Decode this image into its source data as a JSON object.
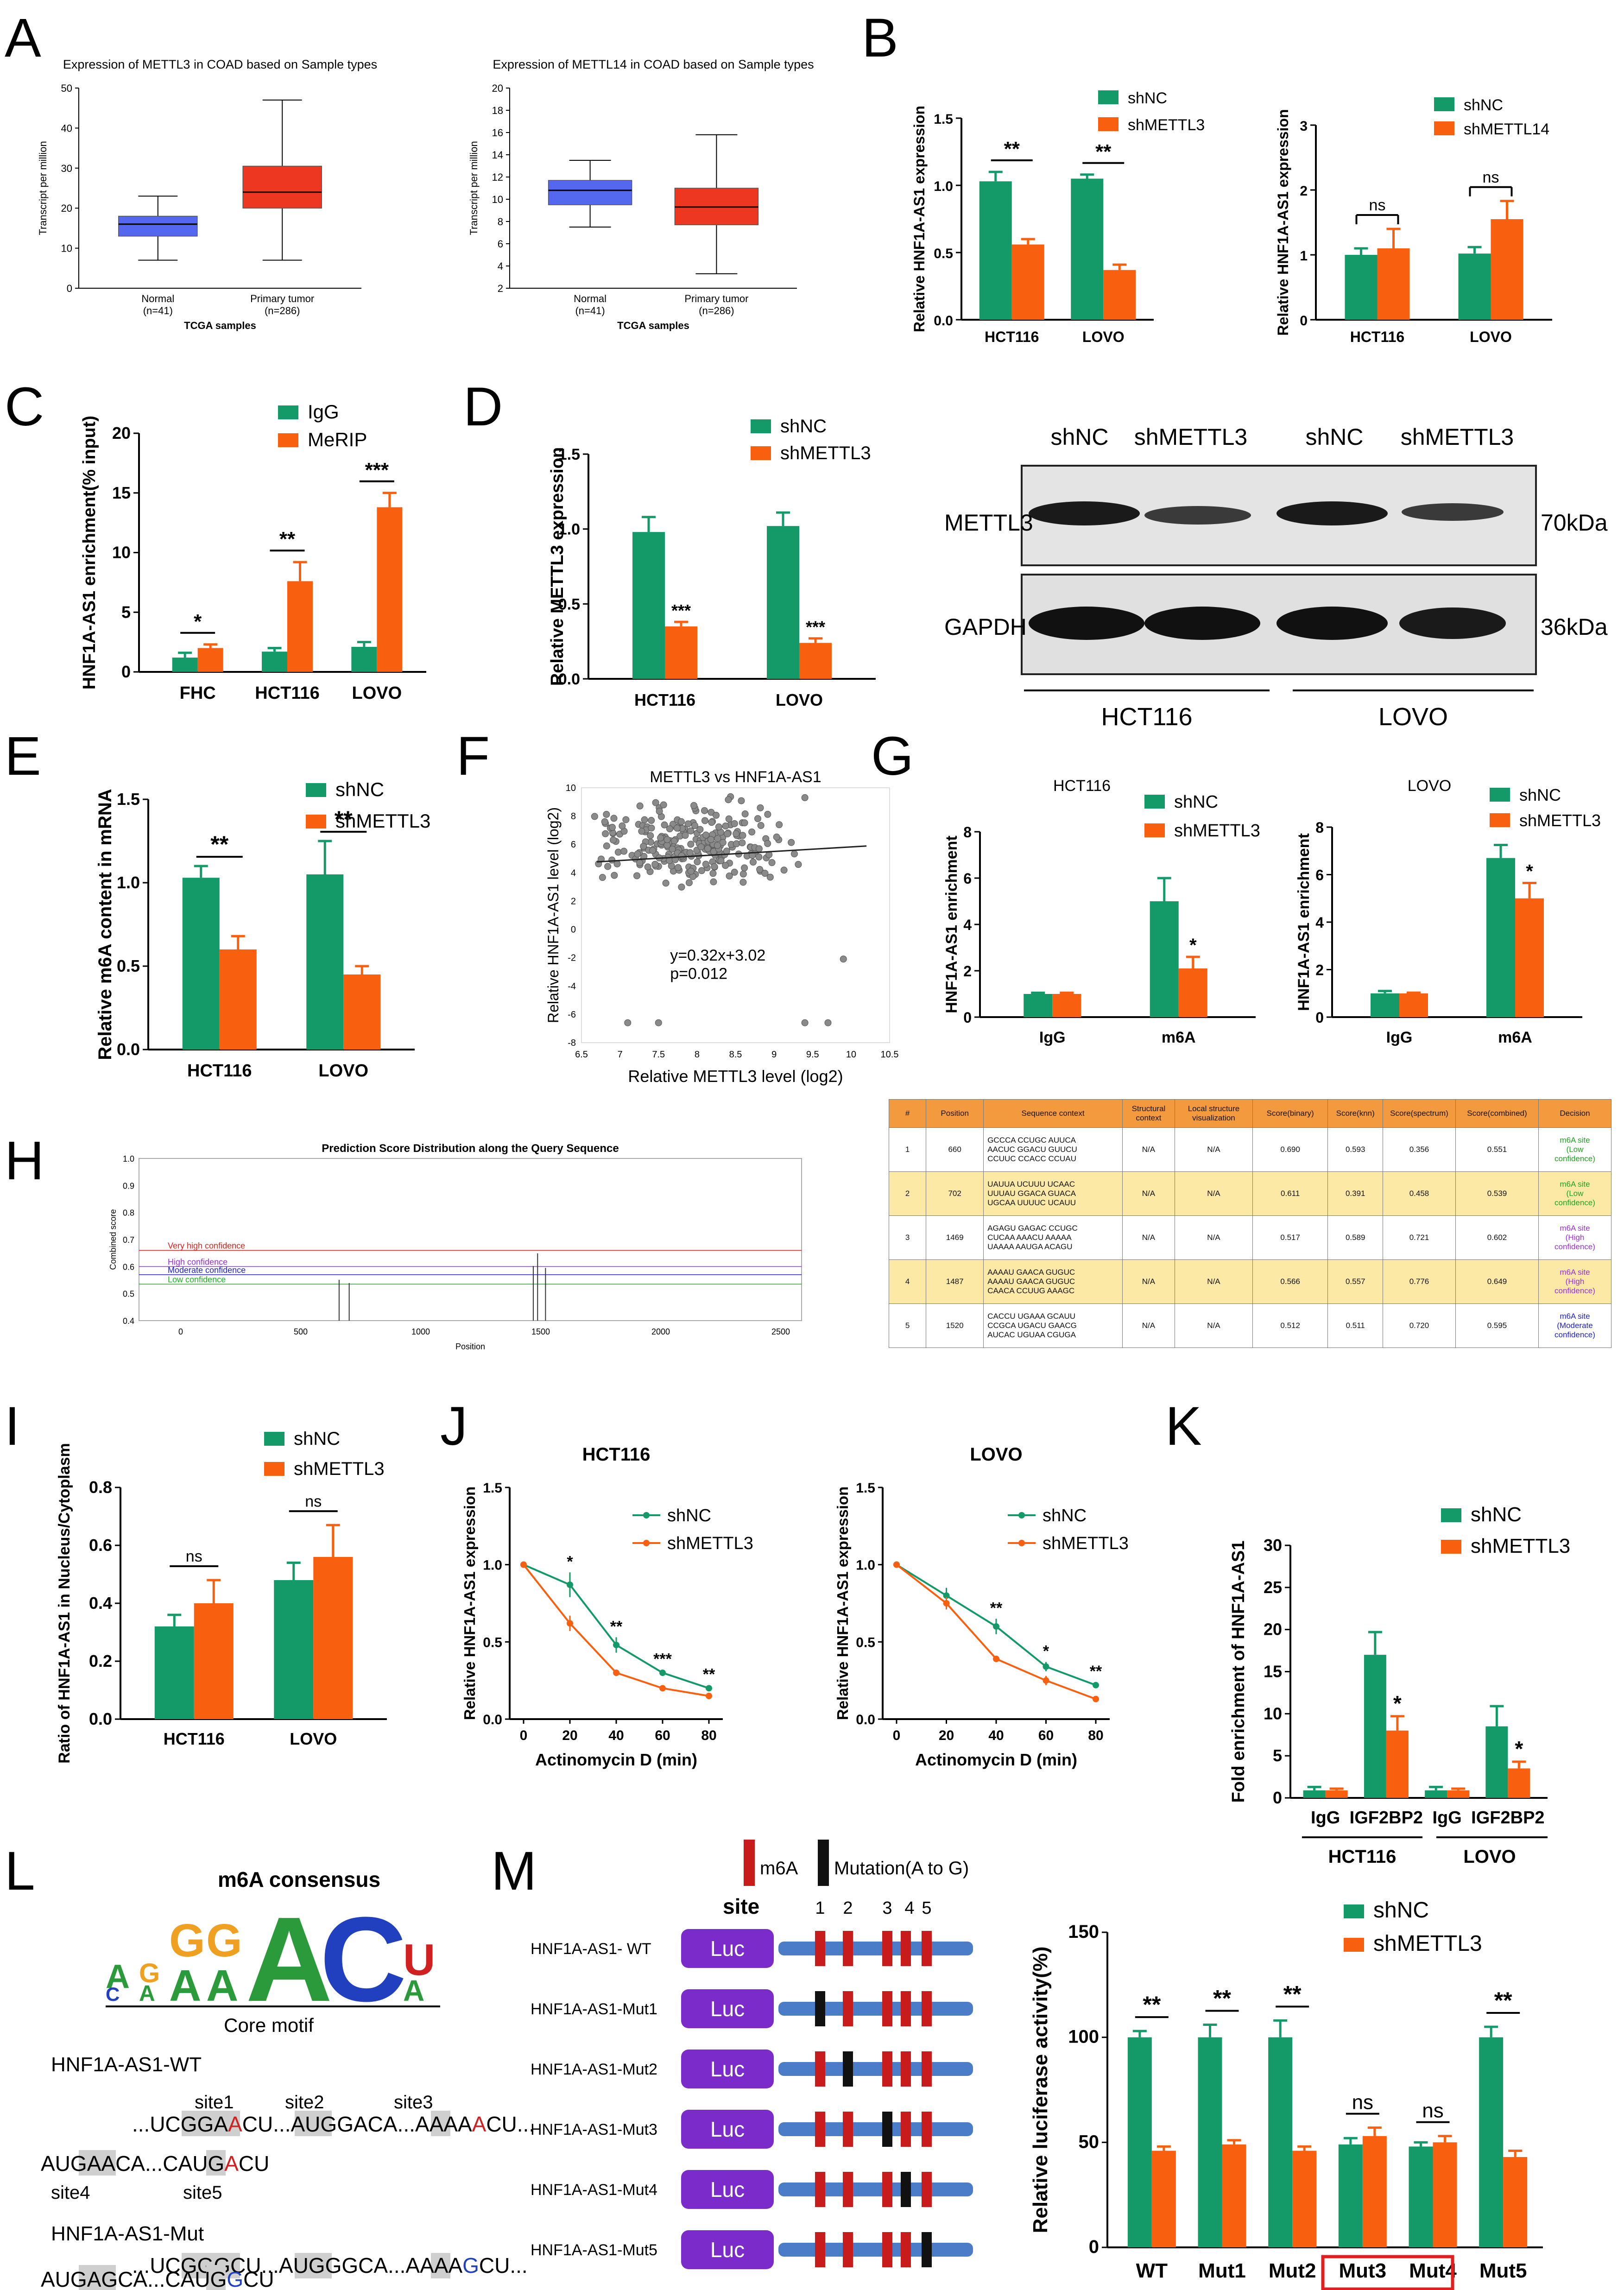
{
  "panel_labels": [
    "A",
    "B",
    "C",
    "D",
    "E",
    "F",
    "G",
    "H",
    "I",
    "J",
    "K",
    "L",
    "M"
  ],
  "colors": {
    "green": "#149a68",
    "orange": "#f86010",
    "blue_box": "#5467ef",
    "red_box": "#ee3720",
    "table_orange": "#f39a3e",
    "table_yellow": "#fde9a6"
  },
  "chart_data": [
    {
      "id": "A1",
      "type": "box",
      "title": "Expression of METTL3 in COAD based on Sample types",
      "xlabel": "TCGA samples",
      "ylabel": "Transcript per million",
      "ylim": [
        0,
        50
      ],
      "yticks": [
        0,
        10,
        20,
        30,
        40,
        50
      ],
      "categories": [
        "Normal",
        "Primary tumor"
      ],
      "category_n": [
        "(n=41)",
        "(n=286)"
      ],
      "boxes": [
        {
          "min": 7,
          "q1": 13,
          "median": 16,
          "q3": 18,
          "max": 23,
          "color": "#5467ef"
        },
        {
          "min": 7,
          "q1": 20,
          "median": 24,
          "q3": 30.5,
          "max": 47,
          "color": "#ee3720"
        }
      ]
    },
    {
      "id": "A2",
      "type": "box",
      "title": "Expression of METTL14 in COAD based on Sample types",
      "xlabel": "TCGA samples",
      "ylabel": "Transcript per million",
      "ylim": [
        2,
        20
      ],
      "yticks": [
        2,
        4,
        6,
        8,
        10,
        12,
        14,
        16,
        18,
        20
      ],
      "categories": [
        "Normal",
        "Primary tumor"
      ],
      "category_n": [
        "(n=41)",
        "(n=286)"
      ],
      "boxes": [
        {
          "min": 7.5,
          "q1": 9.5,
          "median": 10.8,
          "q3": 11.7,
          "max": 13.5,
          "color": "#5467ef"
        },
        {
          "min": 3.3,
          "q1": 7.7,
          "median": 9.3,
          "q3": 11,
          "max": 15.8,
          "color": "#ee3720"
        }
      ]
    },
    {
      "id": "B1",
      "type": "bar",
      "ylabel": "Relative HNF1A-AS1 expression",
      "ylim": [
        0,
        1.5
      ],
      "yticks": [
        "0.0",
        "0.5",
        "1.0",
        "1.5"
      ],
      "categories": [
        "HCT116",
        "LOVO"
      ],
      "series": [
        {
          "name": "shNC",
          "values": [
            1.03,
            1.05
          ],
          "err": [
            0.07,
            0.03
          ]
        },
        {
          "name": "shMETTL3",
          "values": [
            0.56,
            0.37
          ],
          "err": [
            0.04,
            0.04
          ]
        }
      ],
      "significance": [
        "**",
        "**"
      ]
    },
    {
      "id": "B2",
      "type": "bar",
      "ylabel": "Relative HNF1A-AS1 expression",
      "ylim": [
        0,
        3
      ],
      "yticks": [
        "0",
        "1",
        "2",
        "3"
      ],
      "categories": [
        "HCT116",
        "LOVO"
      ],
      "series": [
        {
          "name": "shNC",
          "values": [
            1.0,
            1.02
          ],
          "err": [
            0.1,
            0.1
          ]
        },
        {
          "name": "shMETTL14",
          "values": [
            1.1,
            1.55
          ],
          "err": [
            0.3,
            0.28
          ]
        }
      ],
      "significance": [
        "ns",
        "ns"
      ]
    },
    {
      "id": "C",
      "type": "bar",
      "ylabel": "HNF1A-AS1 enrichment(% input)",
      "ylim": [
        0,
        20
      ],
      "yticks": [
        "0",
        "5",
        "10",
        "15",
        "20"
      ],
      "categories": [
        "FHC",
        "HCT116",
        "LOVO"
      ],
      "series": [
        {
          "name": "IgG",
          "values": [
            1.2,
            1.7,
            2.1
          ],
          "err": [
            0.4,
            0.3,
            0.4
          ]
        },
        {
          "name": "MeRIP",
          "values": [
            2.0,
            7.6,
            13.8
          ],
          "err": [
            0.3,
            1.6,
            1.2
          ]
        }
      ],
      "significance": [
        "*",
        "**",
        "***"
      ]
    },
    {
      "id": "D",
      "type": "bar",
      "ylabel": "Relative METTL3 expression",
      "ylim": [
        0,
        1.5
      ],
      "yticks": [
        "0.0",
        "0.5",
        "1.0",
        "1.5"
      ],
      "categories": [
        "HCT116",
        "LOVO"
      ],
      "series": [
        {
          "name": "shNC",
          "values": [
            0.98,
            1.02
          ],
          "err": [
            0.1,
            0.09
          ]
        },
        {
          "name": "shMETTL3",
          "values": [
            0.35,
            0.24
          ],
          "err": [
            0.03,
            0.03
          ]
        }
      ],
      "significance": [
        "***",
        "***"
      ]
    },
    {
      "id": "E",
      "type": "bar",
      "ylabel": "Relative m6A content in mRNA",
      "ylim": [
        0,
        1.5
      ],
      "yticks": [
        "0.0",
        "0.5",
        "1.0",
        "1.5"
      ],
      "categories": [
        "HCT116",
        "LOVO"
      ],
      "series": [
        {
          "name": "shNC",
          "values": [
            1.03,
            1.05
          ],
          "err": [
            0.07,
            0.2
          ]
        },
        {
          "name": "shMETTL3",
          "values": [
            0.6,
            0.45
          ],
          "err": [
            0.08,
            0.05
          ]
        }
      ],
      "significance": [
        "**",
        "**"
      ]
    },
    {
      "id": "F",
      "type": "scatter",
      "title": "METTL3 vs HNF1A-AS1",
      "xlabel": "Relative METTL3 level (log2)",
      "ylabel": "Relative  HNF1A-AS1 level (log2)",
      "xlim": [
        6.5,
        10.5
      ],
      "ylim": [
        -8,
        10
      ],
      "xticks": [
        "6.5",
        "7",
        "7.5",
        "8",
        "8.5",
        "9",
        "9.5",
        "10",
        "10.5"
      ],
      "yticks": [
        "-8",
        "-6",
        "-4",
        "-2",
        "0",
        "2",
        "4",
        "6",
        "8",
        "10"
      ],
      "fit": {
        "slope": 0.32,
        "intercept": 3.02
      },
      "annotation": [
        "y=0.32x+3.02",
        "p=0.012"
      ],
      "outliers": [
        [
          6.9,
          7.2
        ],
        [
          7.1,
          -6.6
        ],
        [
          7.5,
          -6.6
        ],
        [
          9.4,
          -6.6
        ],
        [
          9.7,
          -6.6
        ],
        [
          9.4,
          9.3
        ],
        [
          9.9,
          -2.1
        ],
        [
          7.8,
          5.2
        ]
      ]
    },
    {
      "id": "G1",
      "type": "bar",
      "title": "HCT116",
      "ylabel": "HNF1A-AS1 enrichment",
      "ylim": [
        0,
        8
      ],
      "yticks": [
        "0",
        "2",
        "4",
        "6",
        "8"
      ],
      "categories": [
        "IgG",
        "m6A"
      ],
      "series": [
        {
          "name": "shNC",
          "values": [
            1.0,
            5.0
          ],
          "err": [
            0.05,
            1.0
          ]
        },
        {
          "name": "shMETTL3",
          "values": [
            1.0,
            2.1
          ],
          "err": [
            0.05,
            0.5
          ]
        }
      ],
      "significance": [
        "",
        "*"
      ]
    },
    {
      "id": "G2",
      "type": "bar",
      "title": "LOVO",
      "ylabel": "HNF1A-AS1 enrichment",
      "ylim": [
        0,
        8
      ],
      "yticks": [
        "0",
        "2",
        "4",
        "6",
        "8"
      ],
      "categories": [
        "IgG",
        "m6A"
      ],
      "series": [
        {
          "name": "shNC",
          "values": [
            1.0,
            6.7
          ],
          "err": [
            0.1,
            0.55
          ]
        },
        {
          "name": "shMETTL3",
          "values": [
            1.0,
            5.0
          ],
          "err": [
            0.03,
            0.65
          ]
        }
      ],
      "significance": [
        "",
        "*"
      ]
    },
    {
      "id": "H",
      "type": "line",
      "title": "Prediction Score Distribution along the Query Sequence",
      "xlabel": "Position",
      "ylabel": "Combined score",
      "xlim": [
        0,
        2500
      ],
      "ylim": [
        0.4,
        1.0
      ],
      "xticks": [
        "0",
        "500",
        "1000",
        "1500",
        "2000",
        "2500"
      ],
      "yticks": [
        "0.4",
        "0.5",
        "0.6",
        "0.7",
        "0.8",
        "0.9",
        "1.0"
      ],
      "thresholds": [
        {
          "label": "Very high confidence",
          "value": 0.66,
          "color": "#e02020"
        },
        {
          "label": "High confidence",
          "value": 0.6,
          "color": "#9a30d0"
        },
        {
          "label": "Moderate confidence",
          "value": 0.57,
          "color": "#2020d0"
        },
        {
          "label": "Low confidence",
          "value": 0.535,
          "color": "#20b020"
        }
      ],
      "sites": [
        [
          660,
          0.551
        ],
        [
          702,
          0.539
        ],
        [
          1469,
          0.602
        ],
        [
          1487,
          0.649
        ],
        [
          1520,
          0.595
        ]
      ]
    },
    {
      "id": "I",
      "type": "bar",
      "ylabel": "Ratio of HNF1A-AS1 in Nucleus/Cytoplasm",
      "ylim": [
        0,
        0.8
      ],
      "yticks": [
        "0.0",
        "0.2",
        "0.4",
        "0.6",
        "0.8"
      ],
      "categories": [
        "HCT116",
        "LOVO"
      ],
      "series": [
        {
          "name": "shNC",
          "values": [
            0.32,
            0.48
          ],
          "err": [
            0.04,
            0.06
          ]
        },
        {
          "name": "shMETTL3",
          "values": [
            0.4,
            0.56
          ],
          "err": [
            0.08,
            0.11
          ]
        }
      ],
      "significance": [
        "ns",
        "ns"
      ]
    },
    {
      "id": "J1",
      "type": "line",
      "title": "HCT116",
      "xlabel": "Actinomycin D (min)",
      "ylabel": "Relative HNF1A-AS1 expression",
      "x": [
        0,
        20,
        40,
        60,
        80
      ],
      "ylim": [
        0,
        1.5
      ],
      "yticks": [
        "0.0",
        "0.5",
        "1.0",
        "1.5"
      ],
      "series": [
        {
          "name": "shNC",
          "values": [
            1.0,
            0.87,
            0.48,
            0.3,
            0.2
          ],
          "err": [
            0,
            0.08,
            0.05,
            0.02,
            0.02
          ]
        },
        {
          "name": "shMETTL3",
          "values": [
            1.0,
            0.62,
            0.3,
            0.2,
            0.15
          ],
          "err": [
            0,
            0.05,
            0.02,
            0.02,
            0.02
          ]
        }
      ],
      "significance": [
        "",
        "*",
        "**",
        "***",
        "**"
      ]
    },
    {
      "id": "J2",
      "type": "line",
      "title": "LOVO",
      "xlabel": "Actinomycin D (min)",
      "ylabel": "Relative HNF1A-AS1 expression",
      "x": [
        0,
        20,
        40,
        60,
        80
      ],
      "ylim": [
        0,
        1.5
      ],
      "yticks": [
        "0.0",
        "0.5",
        "1.0",
        "1.5"
      ],
      "series": [
        {
          "name": "shNC",
          "values": [
            1.0,
            0.8,
            0.6,
            0.34,
            0.22
          ],
          "err": [
            0,
            0.05,
            0.05,
            0.03,
            0.02
          ]
        },
        {
          "name": "shMETTL3",
          "values": [
            1.0,
            0.75,
            0.39,
            0.25,
            0.13
          ],
          "err": [
            0,
            0.04,
            0.02,
            0.03,
            0.01
          ]
        }
      ],
      "significance": [
        "",
        "",
        "**",
        "*",
        "**"
      ]
    },
    {
      "id": "K",
      "type": "bar",
      "ylabel": "Fold enrichment of HNF1A-AS1",
      "ylim": [
        0,
        30
      ],
      "yticks": [
        "0",
        "5",
        "10",
        "15",
        "20",
        "25",
        "30"
      ],
      "categories": [
        "IgG",
        "IGF2BP2",
        "IgG",
        "IGF2BP2"
      ],
      "groups": [
        "HCT116",
        "LOVO"
      ],
      "series": [
        {
          "name": "shNC",
          "values": [
            0.9,
            17.0,
            0.9,
            8.5
          ],
          "err": [
            0.4,
            2.7,
            0.4,
            2.4
          ]
        },
        {
          "name": "shMETTL3",
          "values": [
            0.9,
            8.0,
            0.9,
            3.5
          ],
          "err": [
            0.2,
            1.7,
            0.2,
            0.8
          ]
        }
      ],
      "significance": [
        "",
        "*",
        "",
        "*"
      ]
    },
    {
      "id": "M",
      "type": "bar",
      "ylabel": "Relative luciferase activity(%)",
      "ylim": [
        0,
        150
      ],
      "yticks": [
        "0",
        "50",
        "100",
        "150"
      ],
      "categories": [
        "WT",
        "Mut1",
        "Mut2",
        "Mut3",
        "Mut4",
        "Mut5"
      ],
      "series": [
        {
          "name": "shNC",
          "values": [
            100,
            100,
            100,
            49,
            48,
            100
          ],
          "err": [
            3,
            6,
            8,
            3,
            2,
            5
          ]
        },
        {
          "name": "shMETTL3",
          "values": [
            46,
            49,
            46,
            53,
            50,
            43
          ],
          "err": [
            2,
            2,
            2,
            4,
            3,
            3
          ]
        }
      ],
      "significance": [
        "**",
        "**",
        "**",
        "ns",
        "ns",
        "**"
      ],
      "highlight": [
        "Mut3",
        "Mut4"
      ]
    }
  ],
  "blot": {
    "lanes": [
      "shNC",
      "shMETTL3",
      "shNC",
      "shMETTL3"
    ],
    "proteins": [
      "METTL3",
      "GAPDH"
    ],
    "sizes": [
      "70kDa",
      "36kDa"
    ],
    "groups": [
      "HCT116",
      "LOVO"
    ]
  },
  "table_h": {
    "headers": [
      "#",
      "Position",
      "Sequence context",
      "Structural context",
      "Local structure visualization",
      "Score(binary)",
      "Score(knn)",
      "Score(spectrum)",
      "Score(combined)",
      "Decision"
    ],
    "rows": [
      {
        "n": "1",
        "pos": "660",
        "seq": [
          "GCCCA CCUGC AUUCA",
          "AACUC GGACU GUUCU",
          "CCUUC CCACC CCUAU"
        ],
        "struct": "N/A",
        "vis": "N/A",
        "bin": "0.690",
        "knn": "0.593",
        "spec": "0.356",
        "comb": "0.551",
        "decision": [
          "m6A site",
          "(Low",
          "confidence)"
        ],
        "color": "#20a020"
      },
      {
        "n": "2",
        "pos": "702",
        "seq": [
          "UAUUA UCUUU UCAAC",
          "UUUAU GGACA GUACA",
          "UGCAA UUUUC UCAUU"
        ],
        "struct": "N/A",
        "vis": "N/A",
        "bin": "0.611",
        "knn": "0.391",
        "spec": "0.458",
        "comb": "0.539",
        "decision": [
          "m6A site",
          "(Low",
          "confidence)"
        ],
        "color": "#20a020"
      },
      {
        "n": "3",
        "pos": "1469",
        "seq": [
          "AGAGU GAGAC CCUGC",
          "CUCAA AAACU AAAAA",
          "UAAAA AAUGA ACAGU"
        ],
        "struct": "N/A",
        "vis": "N/A",
        "bin": "0.517",
        "knn": "0.589",
        "spec": "0.721",
        "comb": "0.602",
        "decision": [
          "m6A site",
          "(High",
          "confidence)"
        ],
        "color": "#9a30d0"
      },
      {
        "n": "4",
        "pos": "1487",
        "seq": [
          "AAAAU GAACA GUGUC",
          "AAAAU GAACA GUGUC",
          "CAACA CCUUG AAAGC"
        ],
        "struct": "N/A",
        "vis": "N/A",
        "bin": "0.566",
        "knn": "0.557",
        "spec": "0.776",
        "comb": "0.649",
        "decision": [
          "m6A site",
          "(High",
          "confidence)"
        ],
        "color": "#9a30d0"
      },
      {
        "n": "5",
        "pos": "1520",
        "seq": [
          "CACCU UGAAA GCAUU",
          "CCGCA UGACU GAACG",
          "AUCAC UGUAA CGUGA"
        ],
        "struct": "N/A",
        "vis": "N/A",
        "bin": "0.512",
        "knn": "0.511",
        "spec": "0.720",
        "comb": "0.595",
        "decision": [
          "m6A site",
          "(Moderate",
          "confidence)"
        ],
        "color": "#2020d0"
      }
    ]
  },
  "motif": {
    "title": "m6A consensus",
    "core": "Core motif",
    "wt_label": "HNF1A-AS1-WT",
    "mut_label": "HNF1A-AS1-Mut",
    "site_labels": [
      "site1",
      "site2",
      "site3",
      "site4",
      "site5"
    ],
    "wt_line1": [
      "...UC",
      "GGA",
      "CU...AUG",
      "GA",
      "CA...AAAA",
      "A",
      "CU..."
    ],
    "wt_line2": [
      "AUG",
      "AA",
      "CA...CAUG",
      "A",
      "CU"
    ],
    "mut_line1": [
      "...UC",
      "GGG",
      "CU...AUG",
      "GG",
      "CA...AAAA",
      "G",
      "CU..."
    ],
    "mut_line2": [
      "AUG",
      "AG",
      "CA...CAUG",
      "G",
      "CU"
    ]
  },
  "constructs": {
    "legend_m6a": "m6A",
    "legend_mut": "Mutation(A to G)",
    "site_word": "site",
    "site_numbers": [
      "1",
      "2",
      "3",
      "4",
      "5"
    ],
    "luc": "Luc",
    "names": [
      "HNF1A-AS1- WT",
      "HNF1A-AS1-Mut1",
      "HNF1A-AS1-Mut2",
      "HNF1A-AS1-Mut3",
      "HNF1A-AS1-Mut4",
      "HNF1A-AS1-Mut5"
    ]
  }
}
